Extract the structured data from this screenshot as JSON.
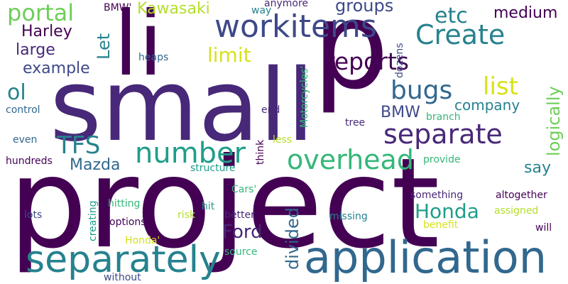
{
  "palette": {
    "dark_purple": "#440154",
    "indigo": "#482878",
    "blue": "#3e4989",
    "slate": "#31688e",
    "teal": "#26828e",
    "sea": "#1f9e89",
    "green": "#35b779",
    "lime": "#6ece58",
    "yellow_green": "#b5de2b",
    "yellow": "#d7e219"
  },
  "words": {
    "project": "project",
    "small": "small",
    "p": "p",
    "li": "li",
    "application": "application",
    "separately": "separately",
    "workitems": "workitems",
    "separate": "separate",
    "overhead": "overhead",
    "number": "number",
    "create": "Create",
    "bugs": "bugs",
    "reports": "reports",
    "portal": "portal",
    "list": "list",
    "etc": "etc",
    "tfs": "TFS",
    "ol": "ol",
    "honda": "Honda",
    "ford": "Ford",
    "kawasaki": "Kawasaki",
    "harley": "Harley",
    "large": "large",
    "example": "example",
    "limit": "limit",
    "groups": "groups",
    "medium": "medium",
    "company": "company",
    "bmw": "BMW",
    "mazda": "Mazda",
    "say": "say",
    "let": "Let",
    "logically": "logically",
    "divided": "divided",
    "bmw_q": "BMW'",
    "way": "way",
    "anymore": "anymore",
    "heaps": "heaps",
    "control": "control",
    "end": "end",
    "branch": "branch",
    "tree": "tree",
    "even": "even",
    "less": "less",
    "hundreds": "hundreds",
    "provide": "provide",
    "structure": "structure",
    "cars_q": "Cars'",
    "something": "something",
    "altogether": "altogether",
    "hit": "hit",
    "hitting": "hitting",
    "assigned": "assigned",
    "lots": "lots",
    "risk": "risk",
    "better": "better",
    "missing": "missing",
    "options": "options",
    "benefit": "benefit",
    "will": "will",
    "honda_q": "Honda'",
    "source": "source",
    "without": "without",
    "dozens": "dozens",
    "motorcycles_q": "Motorcycles'",
    "think": "think",
    "creating": "creating"
  }
}
